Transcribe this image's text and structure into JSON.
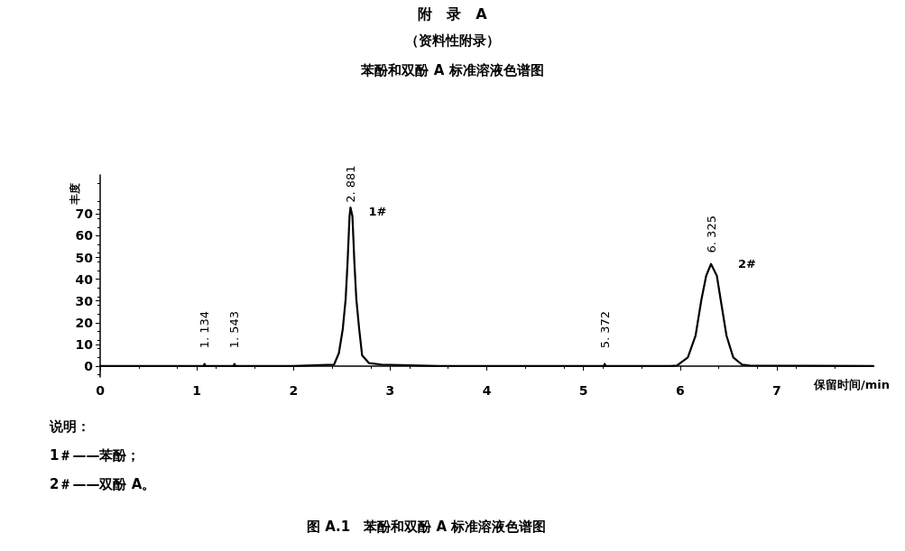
{
  "chart_data": {
    "type": "line",
    "title": "附　录　A",
    "subtitle": "（资料性附录）",
    "xlabel": "保留时间/min",
    "ylabel": "丰度",
    "x": [
      0,
      1.0,
      1.07,
      1.08,
      1.09,
      1.38,
      1.39,
      1.4,
      2.0,
      2.42,
      2.47,
      2.51,
      2.54,
      2.56,
      2.58,
      2.59,
      2.61,
      2.63,
      2.65,
      2.68,
      2.71,
      2.78,
      2.91,
      3.5,
      5.21,
      5.22,
      5.23,
      5.9,
      5.97,
      6.08,
      6.16,
      6.22,
      6.27,
      6.32,
      6.38,
      6.42,
      6.48,
      6.55,
      6.64,
      6.72,
      8.0
    ],
    "values": [
      0,
      0,
      0,
      1,
      0,
      0,
      1,
      0,
      0,
      0.7,
      6,
      17,
      31,
      48,
      69,
      73,
      69,
      48,
      31,
      17,
      5,
      1.4,
      0.7,
      0,
      0,
      1,
      0,
      0,
      0.3,
      4,
      14,
      30.5,
      41.6,
      47,
      41.6,
      30.5,
      14,
      4,
      0.7,
      0.3,
      0
    ],
    "color": "#000000",
    "xlim": [
      0,
      8
    ],
    "xticks": [
      0,
      1,
      2,
      3,
      4,
      5,
      6,
      7
    ],
    "ylim": [
      -5,
      88
    ],
    "yticks": [
      0,
      10,
      20,
      30,
      40,
      50,
      60,
      70
    ],
    "marker": "none",
    "line_style": "solid",
    "grid": false,
    "annotations": [
      {
        "text": "1. 134",
        "x": 1.08,
        "y": 1
      },
      {
        "text": "1. 543",
        "x": 1.39,
        "y": 1
      },
      {
        "text": "2. 881",
        "x": 2.59,
        "y": 73
      },
      {
        "text": "1#",
        "x": 2.59,
        "y": 73
      },
      {
        "text": "5. 372",
        "x": 5.22,
        "y": 1
      },
      {
        "text": "6. 325",
        "x": 6.32,
        "y": 47
      },
      {
        "text": "2#",
        "x": 6.32,
        "y": 47
      },
      "苯酚和双酚 A 标准溶液色谱图",
      "说明：",
      "1＃——苯酚；",
      "2＃——双酚 A。",
      "图 A.1　苯酚和双酚 A 标准溶液色谱图"
    ]
  }
}
